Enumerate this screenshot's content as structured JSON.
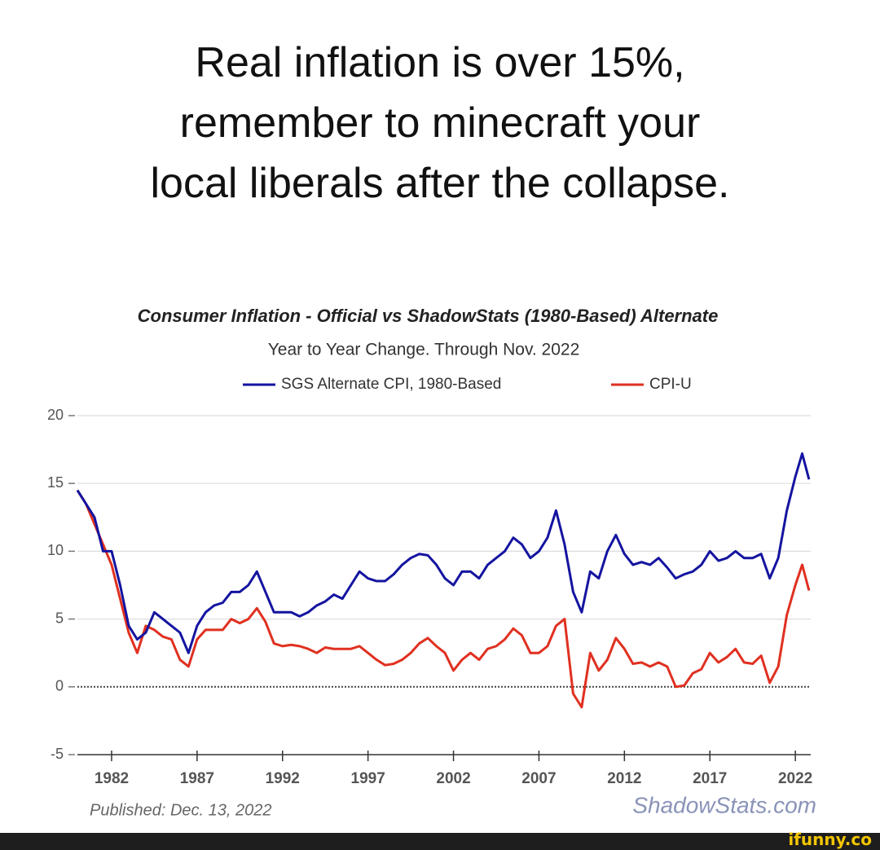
{
  "caption": [
    "Real inflation is over 15%,",
    "remember to minecraft your",
    "local liberals after the collapse."
  ],
  "watermark": "ifunny.co",
  "chart_data": {
    "type": "line",
    "title": "Consumer Inflation - Official vs ShadowStats (1980-Based) Alternate",
    "subtitle": "Year to Year Change. Through Nov. 2022",
    "published": "Published: Dec. 13, 2022",
    "source": "ShadowStats.com",
    "x": [
      1980,
      1980.5,
      1981,
      1981.5,
      1982,
      1982.5,
      1983,
      1983.5,
      1984,
      1984.5,
      1985,
      1985.5,
      1986,
      1986.5,
      1987,
      1987.5,
      1988,
      1988.5,
      1989,
      1989.5,
      1990,
      1990.5,
      1991,
      1991.5,
      1992,
      1992.5,
      1993,
      1993.5,
      1994,
      1994.5,
      1995,
      1995.5,
      1996,
      1996.5,
      1997,
      1997.5,
      1998,
      1998.5,
      1999,
      1999.5,
      2000,
      2000.5,
      2001,
      2001.5,
      2002,
      2002.5,
      2003,
      2003.5,
      2004,
      2004.5,
      2005,
      2005.5,
      2006,
      2006.5,
      2007,
      2007.5,
      2008,
      2008.5,
      2009,
      2009.5,
      2010,
      2010.5,
      2011,
      2011.5,
      2012,
      2012.5,
      2013,
      2013.5,
      2014,
      2014.5,
      2015,
      2015.5,
      2016,
      2016.5,
      2017,
      2017.5,
      2018,
      2018.5,
      2019,
      2019.5,
      2020,
      2020.5,
      2021,
      2021.5,
      2022,
      2022.4,
      2022.8
    ],
    "series": [
      {
        "name": "SGS Alternate CPI, 1980-Based",
        "color": "#1414a0",
        "values": [
          14.5,
          13.5,
          12.5,
          10,
          10,
          7.5,
          4.5,
          3.5,
          4,
          5.5,
          5,
          4.5,
          4,
          2.5,
          4.5,
          5.5,
          6,
          6.2,
          7,
          7,
          7.5,
          8.5,
          7,
          5.5,
          5.5,
          5.5,
          5.2,
          5.5,
          6,
          6.3,
          6.8,
          6.5,
          7.5,
          8.5,
          8,
          7.8,
          7.8,
          8.3,
          9,
          9.5,
          9.8,
          9.7,
          9,
          8,
          7.5,
          8.5,
          8.5,
          8,
          9,
          9.5,
          10,
          11,
          10.5,
          9.5,
          10,
          11,
          13,
          10.5,
          7,
          5.5,
          8.5,
          8,
          10,
          11.2,
          9.8,
          9,
          9.2,
          9,
          9.5,
          8.8,
          8,
          8.3,
          8.5,
          9,
          10,
          9.3,
          9.5,
          10,
          9.5,
          9.5,
          9.8,
          8,
          9.5,
          13,
          15.5,
          17.2,
          15.3
        ]
      },
      {
        "name": "CPI-U",
        "color": "#e03020",
        "values": [
          14.5,
          13.5,
          12,
          10.5,
          9,
          6.5,
          4,
          2.5,
          4.5,
          4.2,
          3.7,
          3.5,
          2,
          1.5,
          3.5,
          4.2,
          4.2,
          4.2,
          5,
          4.7,
          5,
          5.8,
          4.8,
          3.2,
          3,
          3.1,
          3,
          2.8,
          2.5,
          2.9,
          2.8,
          2.8,
          2.8,
          3,
          2.5,
          2,
          1.6,
          1.7,
          2,
          2.5,
          3.2,
          3.6,
          3,
          2.5,
          1.2,
          2,
          2.5,
          2,
          2.8,
          3,
          3.5,
          4.3,
          3.8,
          2.5,
          2.5,
          3,
          4.5,
          5,
          -0.5,
          -1.5,
          2.5,
          1.2,
          2,
          3.6,
          2.8,
          1.7,
          1.8,
          1.5,
          1.8,
          1.5,
          0,
          0.1,
          1,
          1.3,
          2.5,
          1.8,
          2.2,
          2.8,
          1.8,
          1.7,
          2.3,
          0.3,
          1.5,
          5.3,
          7.5,
          9,
          7.1
        ]
      }
    ],
    "xlim": [
      1980,
      2022.9
    ],
    "xticks": [
      1982,
      1987,
      1992,
      1997,
      2002,
      2007,
      2012,
      2017,
      2022
    ],
    "ylim": [
      -5,
      20
    ],
    "yticks": [
      20,
      15,
      10,
      5,
      0,
      -5
    ],
    "grid": true
  }
}
